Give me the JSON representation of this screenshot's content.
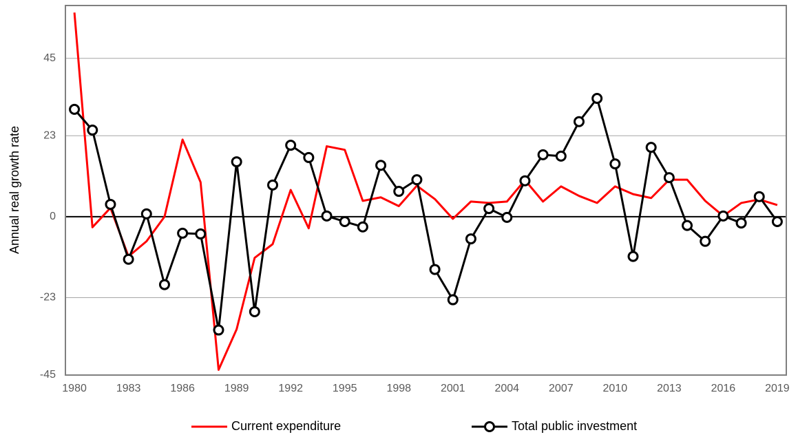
{
  "chart_data": {
    "type": "line",
    "y_label": "Annual real growth rate",
    "x": [
      1980,
      1981,
      1982,
      1983,
      1984,
      1985,
      1986,
      1987,
      1988,
      1989,
      1990,
      1991,
      1992,
      1993,
      1994,
      1995,
      1996,
      1997,
      1998,
      1999,
      2000,
      2001,
      2002,
      2003,
      2004,
      2005,
      2006,
      2007,
      2008,
      2009,
      2010,
      2011,
      2012,
      2013,
      2014,
      2015,
      2016,
      2017,
      2018,
      2019
    ],
    "xlim": [
      1979.5,
      2019.5
    ],
    "xticks": [
      1980,
      1983,
      1986,
      1989,
      1992,
      1995,
      1998,
      2001,
      2004,
      2007,
      2010,
      2013,
      2016,
      2019
    ],
    "ylim": [
      -45,
      60
    ],
    "yticks": [
      -45,
      -23,
      0,
      23,
      45
    ],
    "grid": true,
    "legend": "bottom",
    "series": [
      {
        "name": "Current expenditure",
        "color": "#ff0000",
        "marker": false,
        "values": [
          58,
          -3,
          2.5,
          -11.3,
          -7,
          0,
          21.9,
          9.8,
          -43.5,
          -32,
          -11.7,
          -7.8,
          7.6,
          -3.3,
          20,
          19,
          4.5,
          5.5,
          3,
          8.8,
          5,
          -0.6,
          4.3,
          3.9,
          4.3,
          10.4,
          4.3,
          8.6,
          5.9,
          3.9,
          8.6,
          6.4,
          5.3,
          10.5,
          10.5,
          4.5,
          0.2,
          3.9,
          4.9,
          3.3
        ]
      },
      {
        "name": "Total public investment",
        "color": "#000000",
        "marker": true,
        "values": [
          30.5,
          24.6,
          3.5,
          -12.1,
          0.8,
          -19.3,
          -4.7,
          -4.9,
          -32.2,
          15.6,
          -27,
          9,
          20.3,
          16.8,
          0.2,
          -1.4,
          -2.9,
          14.6,
          7.2,
          10.5,
          -15,
          -23.6,
          -6.3,
          2.3,
          -0.2,
          10.2,
          17.6,
          17.2,
          27,
          33.6,
          15,
          -11.3,
          19.7,
          11.1,
          -2.5,
          -7,
          0.2,
          -1.8,
          5.7,
          -1.4
        ]
      }
    ]
  }
}
